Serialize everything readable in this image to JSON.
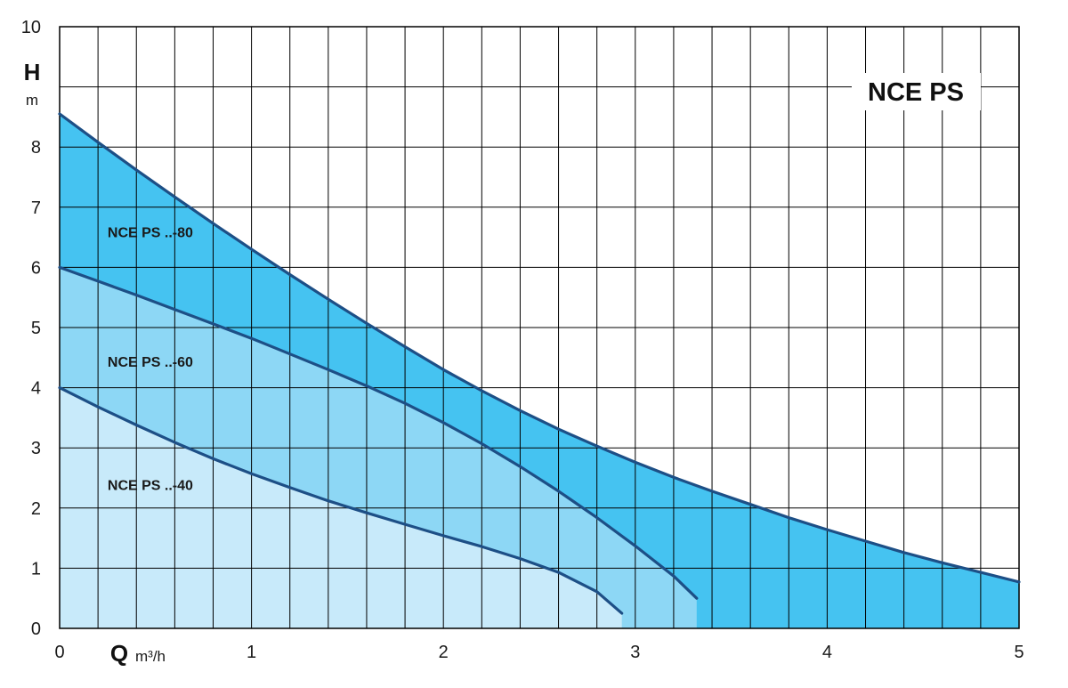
{
  "chart_data": {
    "type": "area",
    "title": "NCE PS",
    "ylabel_symbol": "H",
    "ylabel_unit": "m",
    "xlabel_symbol": "Q",
    "xlabel_unit": "m³/h",
    "xlim": [
      0,
      5
    ],
    "ylim": [
      0,
      10
    ],
    "x_ticks": [
      0,
      1,
      2,
      3,
      4,
      5
    ],
    "y_ticks": [
      0,
      1,
      2,
      3,
      4,
      5,
      6,
      7,
      8,
      10
    ],
    "grid": true,
    "colors": {
      "series_80_fill": "#45c3f1",
      "series_60_fill": "#8dd7f5",
      "series_40_fill": "#c8eafa",
      "curve": "#1d4f86",
      "grid": "#000000"
    },
    "series": [
      {
        "name": "NCE PS ..-80",
        "x": [
          0,
          0.2,
          0.4,
          0.6,
          0.8,
          1.0,
          1.2,
          1.4,
          1.6,
          1.8,
          2.0,
          2.2,
          2.4,
          2.6,
          2.8,
          3.0,
          3.2,
          3.4,
          3.6,
          3.8,
          4.0,
          4.2,
          4.4,
          4.6,
          4.8,
          5.0
        ],
        "values": [
          8.55,
          8.08,
          7.62,
          7.17,
          6.73,
          6.3,
          5.88,
          5.47,
          5.07,
          4.68,
          4.3,
          3.95,
          3.62,
          3.31,
          3.03,
          2.76,
          2.51,
          2.28,
          2.06,
          1.84,
          1.64,
          1.45,
          1.26,
          1.09,
          0.93,
          0.77
        ]
      },
      {
        "name": "NCE PS ..-60",
        "x": [
          0,
          0.2,
          0.4,
          0.6,
          0.8,
          1.0,
          1.2,
          1.4,
          1.6,
          1.8,
          2.0,
          2.2,
          2.4,
          2.6,
          2.8,
          3.0,
          3.2,
          3.32
        ],
        "values": [
          6.0,
          5.77,
          5.54,
          5.3,
          5.06,
          4.82,
          4.56,
          4.3,
          4.03,
          3.74,
          3.42,
          3.07,
          2.69,
          2.28,
          1.84,
          1.37,
          0.87,
          0.5
        ]
      },
      {
        "name": "NCE PS ..-40",
        "x": [
          0,
          0.2,
          0.4,
          0.6,
          0.8,
          1.0,
          1.2,
          1.4,
          1.6,
          1.8,
          2.0,
          2.2,
          2.4,
          2.6,
          2.8,
          2.93
        ],
        "values": [
          4.0,
          3.68,
          3.38,
          3.09,
          2.82,
          2.57,
          2.34,
          2.12,
          1.92,
          1.73,
          1.54,
          1.36,
          1.16,
          0.93,
          0.61,
          0.25
        ]
      }
    ]
  }
}
